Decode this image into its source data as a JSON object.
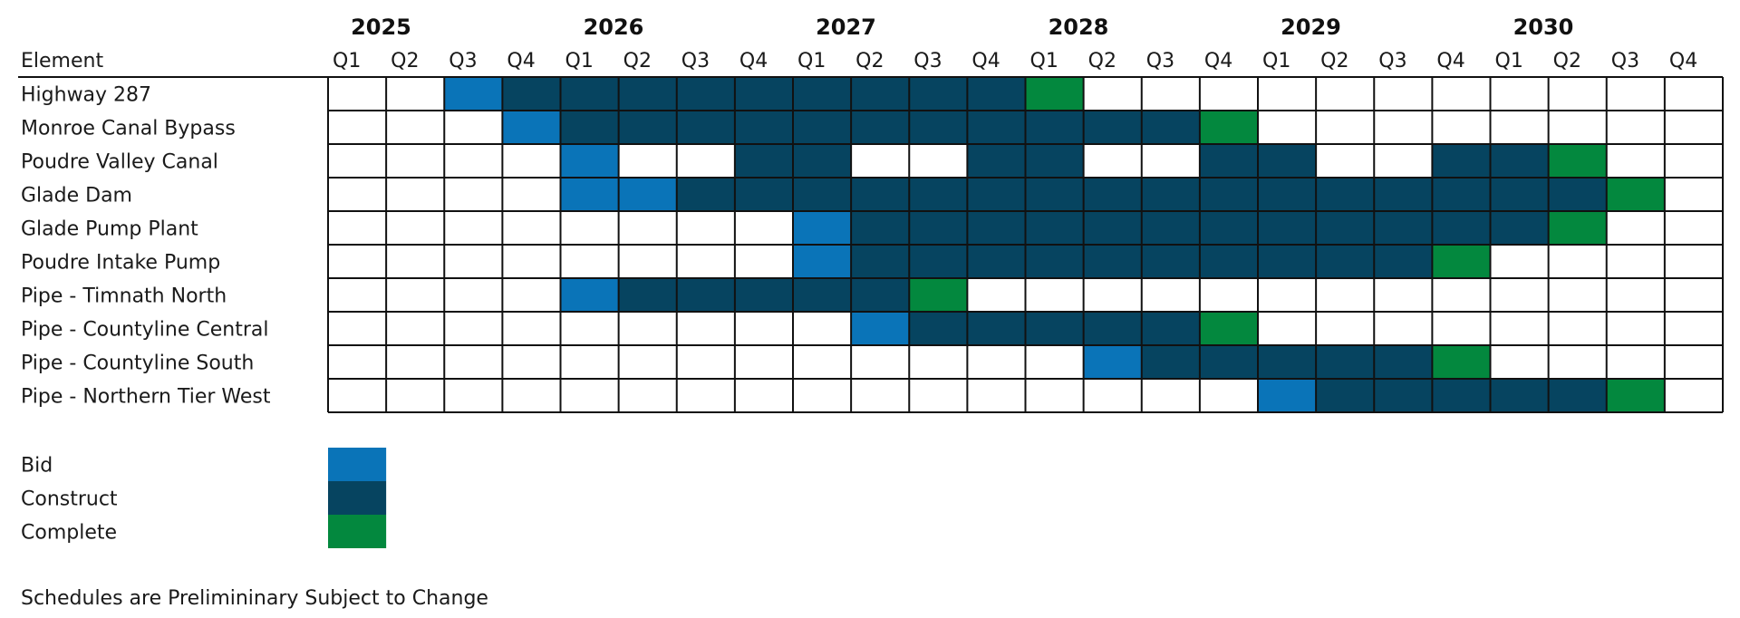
{
  "chart_data": {
    "type": "table",
    "title": "",
    "element_header": "Element",
    "years": [
      "2025",
      "2026",
      "2027",
      "2028",
      "2029",
      "2030"
    ],
    "quarters": [
      "Q1",
      "Q2",
      "Q3",
      "Q4"
    ],
    "legend": [
      {
        "key": "B",
        "label": "Bid",
        "color": "#0a74b8"
      },
      {
        "key": "C",
        "label": "Construct",
        "color": "#064460"
      },
      {
        "key": "D",
        "label": "Complete",
        "color": "#03883e"
      }
    ],
    "rows": [
      {
        "name": "Highway 287",
        "cells": "..BCCCCCCCCCD..........."
      },
      {
        "name": "Monroe Canal Bypass",
        "cells": "...BCCCCCCCCCCCD........"
      },
      {
        "name": "Poudre Valley Canal",
        "cells": "....B..CC..CC..CC..CCD.."
      },
      {
        "name": "Glade Dam",
        "cells": "....BBCCCCCCCCCCCCCCCCD."
      },
      {
        "name": "Glade Pump Plant",
        "cells": "........BCCCCCCCCCCCCD.."
      },
      {
        "name": "Poudre Intake Pump",
        "cells": "........BCCCCCCCCCCD...."
      },
      {
        "name": "Pipe - Timnath North",
        "cells": "....BCCCCCD............."
      },
      {
        "name": "Pipe - Countyline Central",
        "cells": ".........BCCCCCD........"
      },
      {
        "name": "Pipe - Countyline South",
        "cells": ".............BCCCCCD...."
      },
      {
        "name": "Pipe - Northern Tier West",
        "cells": "................BCCCCCD."
      }
    ],
    "note": "Schedules are Prelimininary Subject to Change"
  }
}
